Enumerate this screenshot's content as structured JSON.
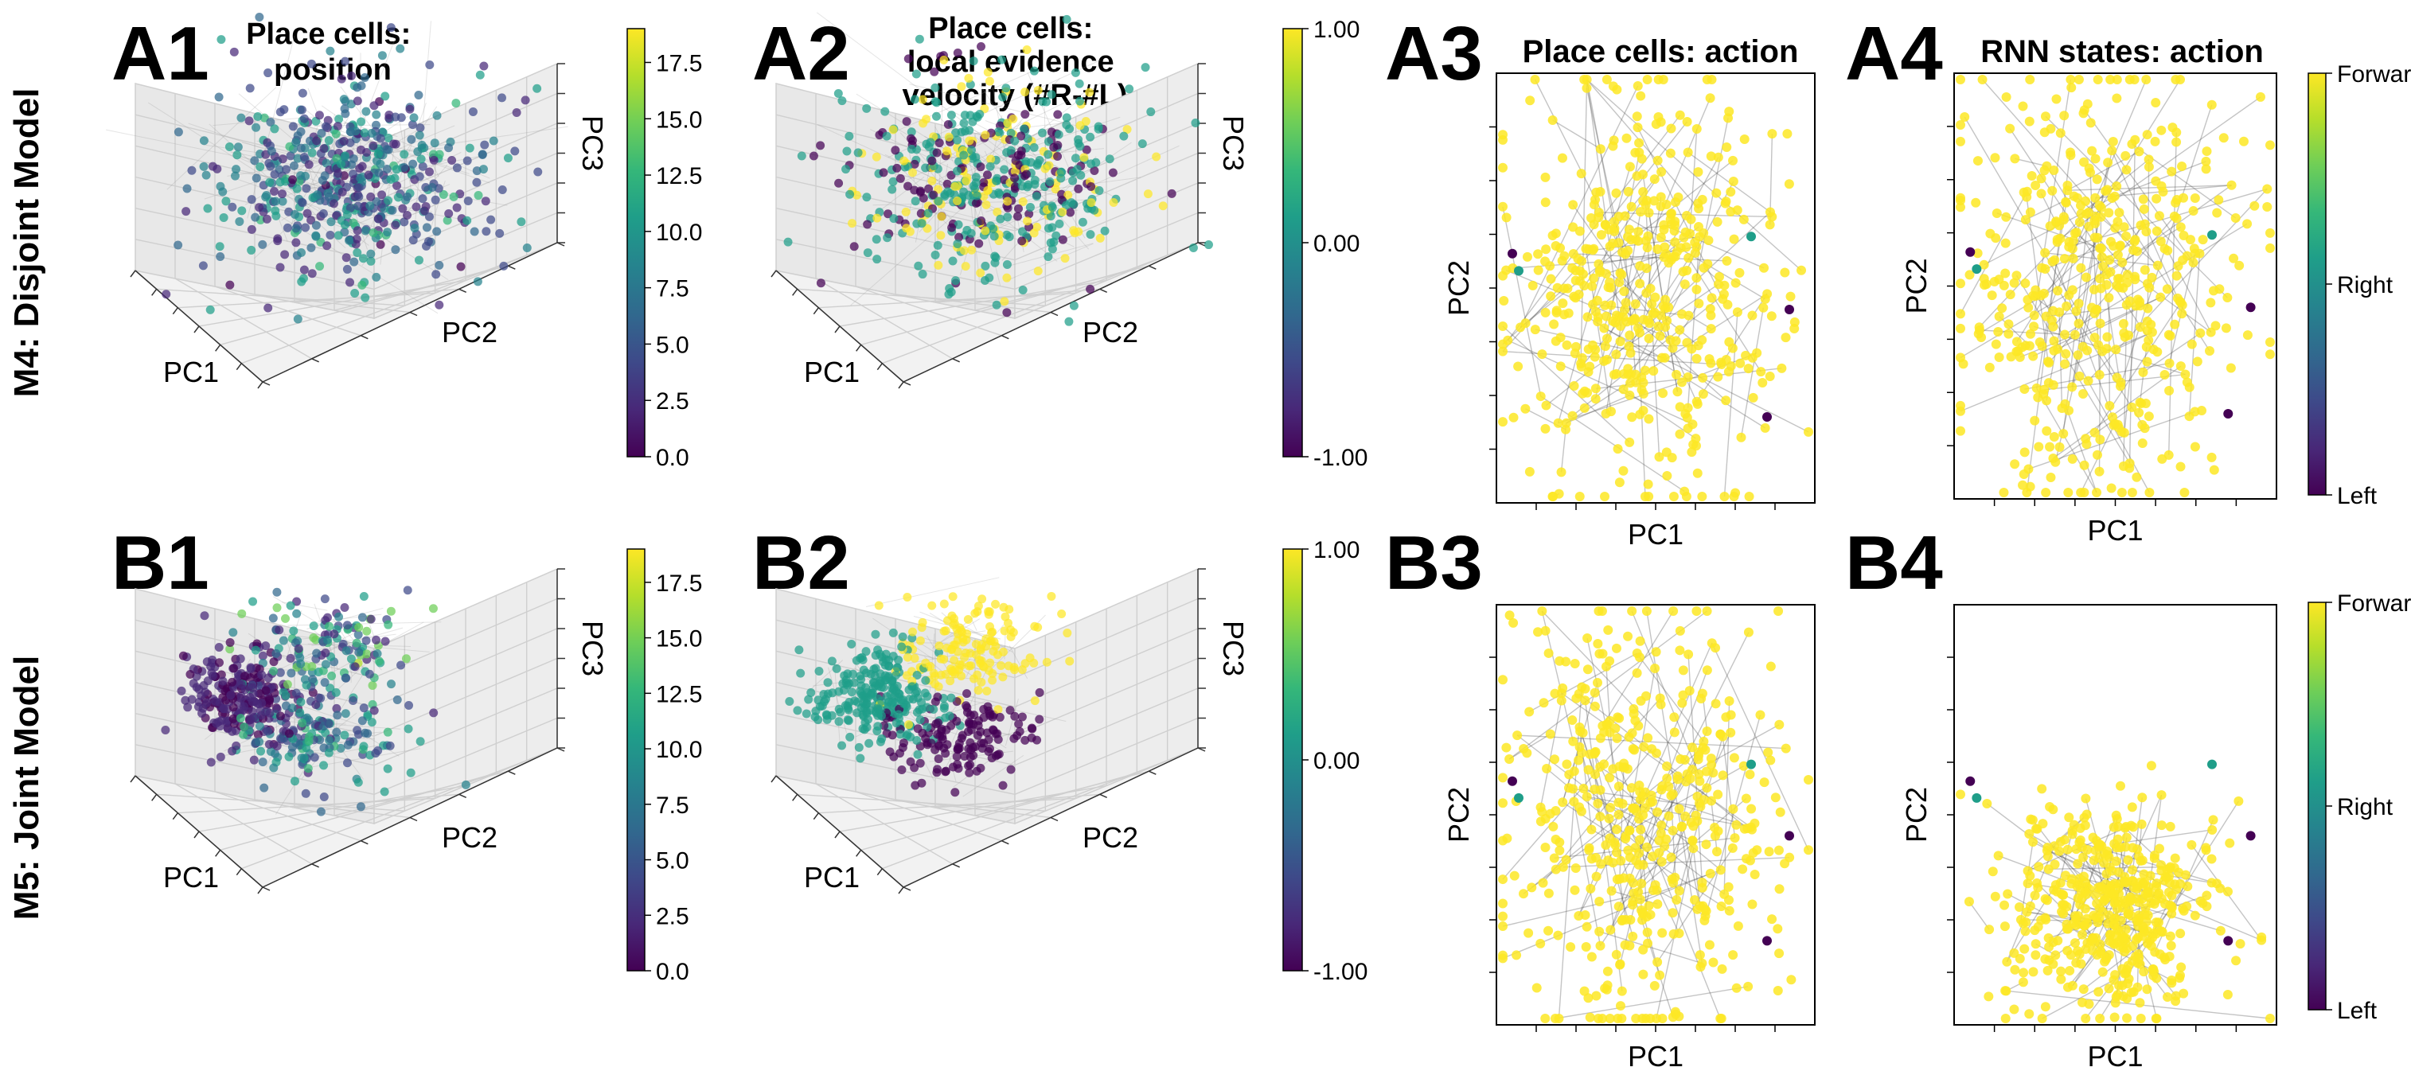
{
  "row_labels": {
    "top": "M4: Disjoint Model",
    "bottom": "M5: Joint Model"
  },
  "colors": {
    "viridis": [
      "#440154",
      "#482878",
      "#3e4989",
      "#31688e",
      "#26828e",
      "#1f9e89",
      "#35b779",
      "#6ece58",
      "#b5de2b",
      "#fde725"
    ],
    "point_yellow": "#fde725",
    "trajectory_gray": "#555555",
    "pane_gray": "#ececec"
  },
  "chart_data": [
    {
      "id": "A1",
      "letter": "A1",
      "type": "scatter",
      "title": "Place cells:\nposition",
      "projection": "3d",
      "xlabel": "PC1",
      "ylabel": "PC2",
      "zlabel": "PC3",
      "color_by": "position",
      "colorbar": {
        "min": 0.0,
        "max": 19.0,
        "ticks": [
          "0.0",
          "2.5",
          "5.0",
          "7.5",
          "10.0",
          "12.5",
          "15.0",
          "17.5"
        ],
        "tick_values": [
          0,
          2.5,
          5,
          7.5,
          10,
          12.5,
          15,
          17.5
        ]
      }
    },
    {
      "id": "A2",
      "letter": "A2",
      "type": "scatter",
      "title": "Place cells:\nlocal evidence\nvelocity (#R-#L)",
      "projection": "3d",
      "xlabel": "PC1",
      "ylabel": "PC2",
      "zlabel": "PC3",
      "color_by": "evidence",
      "colorbar": {
        "min": -1.0,
        "max": 1.0,
        "ticks": [
          "-1.00",
          "0.00",
          "1.00"
        ],
        "tick_values": [
          -1,
          0,
          1
        ]
      }
    },
    {
      "id": "A3",
      "letter": "A3",
      "type": "scatter",
      "title": "Place cells: action",
      "projection": "2d",
      "xlabel": "PC1",
      "ylabel": "PC2",
      "color_by": "action",
      "legend": "none"
    },
    {
      "id": "A4",
      "letter": "A4",
      "type": "scatter",
      "title": "RNN states: action",
      "projection": "2d",
      "xlabel": "PC1",
      "ylabel": "PC2",
      "color_by": "action",
      "colorbar": {
        "min": 0,
        "max": 2,
        "ticks": [
          "Left",
          "Right",
          "Forward"
        ],
        "tick_values": [
          0,
          1,
          2
        ]
      }
    },
    {
      "id": "B1",
      "letter": "B1",
      "type": "scatter",
      "title": "",
      "projection": "3d",
      "xlabel": "PC1",
      "ylabel": "PC2",
      "zlabel": "PC3",
      "color_by": "position",
      "colorbar": {
        "min": 0.0,
        "max": 19.0,
        "ticks": [
          "0.0",
          "2.5",
          "5.0",
          "7.5",
          "10.0",
          "12.5",
          "15.0",
          "17.5"
        ],
        "tick_values": [
          0,
          2.5,
          5,
          7.5,
          10,
          12.5,
          15,
          17.5
        ]
      }
    },
    {
      "id": "B2",
      "letter": "B2",
      "type": "scatter",
      "title": "",
      "projection": "3d",
      "xlabel": "PC1",
      "ylabel": "PC2",
      "zlabel": "PC3",
      "color_by": "evidence",
      "colorbar": {
        "min": -1.0,
        "max": 1.0,
        "ticks": [
          "-1.00",
          "0.00",
          "1.00"
        ],
        "tick_values": [
          -1,
          0,
          1
        ]
      }
    },
    {
      "id": "B3",
      "letter": "B3",
      "type": "scatter",
      "title": "",
      "projection": "2d",
      "xlabel": "PC1",
      "ylabel": "PC2",
      "color_by": "action",
      "legend": "none"
    },
    {
      "id": "B4",
      "letter": "B4",
      "type": "scatter",
      "title": "",
      "projection": "2d",
      "xlabel": "PC1",
      "ylabel": "PC2",
      "color_by": "action",
      "colorbar": {
        "min": 0,
        "max": 2,
        "ticks": [
          "Left",
          "Right",
          "Forward"
        ],
        "tick_values": [
          0,
          1,
          2
        ]
      }
    }
  ]
}
